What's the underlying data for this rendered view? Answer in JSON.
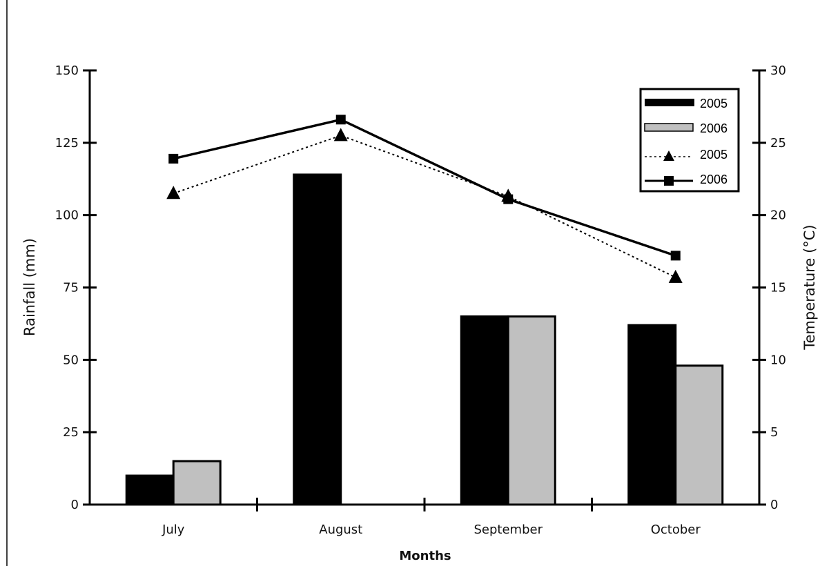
{
  "chart_data": {
    "type": "bar",
    "xlabel": "Months",
    "ylabel": "Rainfall (mm)",
    "y2label": "Temperature (°C)",
    "categories": [
      "July",
      "August",
      "September",
      "October"
    ],
    "ylim": [
      0,
      150
    ],
    "yticks": [
      "0",
      "25",
      "50",
      "75",
      "100",
      "125",
      "150"
    ],
    "y2lim": [
      0,
      30
    ],
    "y2ticks": [
      "0",
      "5",
      "10",
      "15",
      "20",
      "25",
      "30"
    ],
    "bar_series": [
      {
        "name": "2005",
        "values": [
          10,
          114,
          65,
          62
        ],
        "color": "#000000"
      },
      {
        "name": "2006",
        "values": [
          15,
          0,
          65,
          48
        ],
        "color": "#c0c0c0"
      }
    ],
    "line_series": [
      {
        "name": "2005",
        "axis": "right",
        "values": [
          21.5,
          25.5,
          21.3,
          15.7
        ],
        "marker": "triangle",
        "line_style": "dotted",
        "color": "#000000"
      },
      {
        "name": "2006",
        "axis": "right",
        "values": [
          23.9,
          26.6,
          21.1,
          17.2
        ],
        "marker": "square",
        "line_style": "solid",
        "color": "#000000"
      }
    ],
    "legend": {
      "position": "top-right",
      "entries": [
        "2005",
        "2006",
        "2005",
        "2006"
      ]
    },
    "grid": false
  }
}
